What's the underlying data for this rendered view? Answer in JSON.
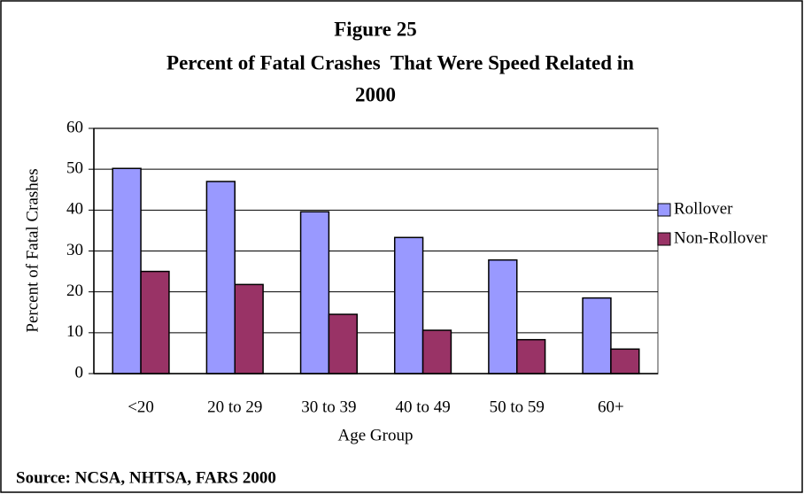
{
  "chart_data": {
    "type": "bar",
    "title": [
      "Figure 25",
      "Percent of Fatal Crashes  That Were Speed Related in",
      "2000"
    ],
    "x_label": "Age Group",
    "y_label": "Percent of Fatal Crashes",
    "categories": [
      "<20",
      "20 to 29",
      "30 to 39",
      "40 to 49",
      "50 to 59",
      "60+"
    ],
    "series": [
      {
        "name": "Rollover",
        "color": "#9999ff",
        "values": [
          50.2,
          47,
          39.6,
          33.3,
          27.8,
          18.5
        ]
      },
      {
        "name": "Non-Rollover",
        "color": "#993366",
        "values": [
          25,
          21.8,
          14.5,
          10.6,
          8.3,
          6
        ]
      }
    ],
    "ylim": [
      0,
      60
    ],
    "yticks": [
      0,
      10,
      20,
      30,
      40,
      50,
      60
    ],
    "grid": true,
    "legend": "right",
    "source": "Source: NCSA, NHTSA, FARS 2000"
  }
}
